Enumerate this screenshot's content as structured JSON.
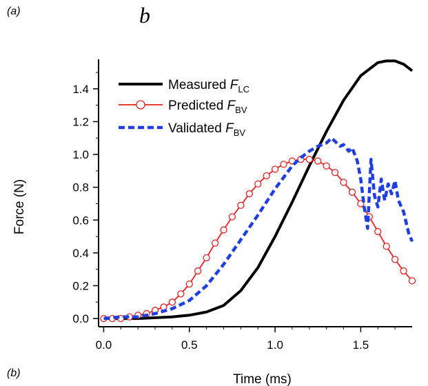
{
  "panel_labels": {
    "a": "(a)",
    "b_big": "b",
    "b": "(b)"
  },
  "chart_data": {
    "type": "line",
    "title": "",
    "xlabel": "Time (ms)",
    "ylabel": "Force (N)",
    "xlim": [
      -0.03,
      1.8
    ],
    "ylim": [
      -0.05,
      1.58
    ],
    "xticks": [
      0.0,
      0.5,
      1.0,
      1.5
    ],
    "xtick_labels": [
      "0.0",
      "0.5",
      "1.0",
      "1.5"
    ],
    "yticks": [
      0.0,
      0.2,
      0.4,
      0.6,
      0.8,
      1.0,
      1.2,
      1.4
    ],
    "ytick_labels": [
      "0.0",
      "0.2",
      "0.4",
      "0.6",
      "0.8",
      "1.0",
      "1.2",
      "1.4"
    ],
    "grid": false,
    "legend_position": "top-left",
    "series": [
      {
        "name": "Measured",
        "subscript": "LC",
        "symbol": "F",
        "color": "#000000",
        "style": "solid",
        "marker": "none",
        "x": [
          0.0,
          0.2,
          0.4,
          0.5,
          0.6,
          0.7,
          0.8,
          0.9,
          1.0,
          1.1,
          1.2,
          1.3,
          1.4,
          1.5,
          1.6,
          1.65,
          1.7,
          1.75,
          1.8
        ],
        "y": [
          0.0,
          0.0,
          0.01,
          0.02,
          0.04,
          0.08,
          0.17,
          0.31,
          0.5,
          0.71,
          0.93,
          1.14,
          1.33,
          1.48,
          1.56,
          1.57,
          1.57,
          1.55,
          1.51
        ]
      },
      {
        "name": "Predicted",
        "subscript": "BV",
        "symbol": "F",
        "color": "#e32222",
        "style": "solid",
        "marker": "circle",
        "x": [
          0.0,
          0.05,
          0.1,
          0.15,
          0.2,
          0.25,
          0.3,
          0.35,
          0.4,
          0.45,
          0.5,
          0.55,
          0.6,
          0.65,
          0.7,
          0.75,
          0.8,
          0.85,
          0.9,
          0.95,
          1.0,
          1.05,
          1.1,
          1.15,
          1.2,
          1.25,
          1.3,
          1.35,
          1.4,
          1.45,
          1.5,
          1.55,
          1.6,
          1.65,
          1.7,
          1.75,
          1.8
        ],
        "y": [
          0.0,
          0.0,
          0.0,
          0.01,
          0.02,
          0.03,
          0.05,
          0.07,
          0.1,
          0.15,
          0.21,
          0.29,
          0.37,
          0.46,
          0.54,
          0.62,
          0.69,
          0.76,
          0.82,
          0.87,
          0.91,
          0.94,
          0.96,
          0.97,
          0.97,
          0.96,
          0.93,
          0.89,
          0.83,
          0.77,
          0.7,
          0.62,
          0.53,
          0.44,
          0.36,
          0.29,
          0.23
        ]
      },
      {
        "name": "Validated",
        "subscript": "BV",
        "symbol": "F",
        "color": "#1f3fe0",
        "style": "dashed",
        "marker": "none",
        "x": [
          0.0,
          0.1,
          0.2,
          0.3,
          0.4,
          0.5,
          0.6,
          0.7,
          0.8,
          0.9,
          1.0,
          1.05,
          1.1,
          1.15,
          1.2,
          1.25,
          1.3,
          1.33,
          1.35,
          1.38,
          1.4,
          1.43,
          1.45,
          1.48,
          1.5,
          1.52,
          1.54,
          1.56,
          1.58,
          1.6,
          1.62,
          1.64,
          1.66,
          1.68,
          1.7,
          1.72,
          1.75,
          1.78,
          1.8
        ],
        "y": [
          0.0,
          0.01,
          0.01,
          0.03,
          0.06,
          0.11,
          0.2,
          0.33,
          0.48,
          0.63,
          0.79,
          0.86,
          0.93,
          0.98,
          1.02,
          1.05,
          1.07,
          1.1,
          1.08,
          1.05,
          1.06,
          1.02,
          1.04,
          0.96,
          0.85,
          0.68,
          0.55,
          0.97,
          0.75,
          0.68,
          0.85,
          0.72,
          0.82,
          0.76,
          0.84,
          0.72,
          0.65,
          0.52,
          0.47
        ]
      }
    ]
  }
}
